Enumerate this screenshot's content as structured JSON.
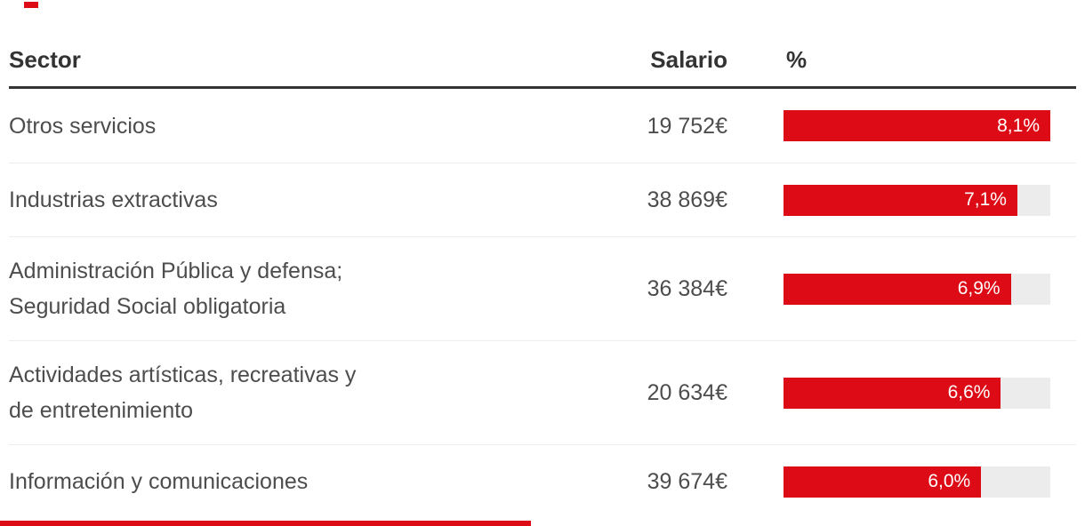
{
  "table": {
    "headers": {
      "sector": "Sector",
      "salario": "Salario",
      "percent": "%"
    },
    "rows": [
      {
        "sector": "Otros servicios",
        "salary": "19 752€",
        "percent": 8.1,
        "percent_label": "8,1%"
      },
      {
        "sector": "Industrias extractivas",
        "salary": "38 869€",
        "percent": 7.1,
        "percent_label": "7,1%"
      },
      {
        "sector": "Administración Pública y defensa;\nSeguridad Social obligatoria",
        "salary": "36 384€",
        "percent": 6.9,
        "percent_label": "6,9%"
      },
      {
        "sector": "Actividades artísticas, recreativas y\nde entretenimiento",
        "salary": "20 634€",
        "percent": 6.6,
        "percent_label": "6,6%"
      },
      {
        "sector": "Información y comunicaciones",
        "salary": "39 674€",
        "percent": 6.0,
        "percent_label": "6,0%"
      }
    ],
    "bar_max_percent": 8.1
  },
  "colors": {
    "bar_red": "#dc0b15",
    "bar_track": "#ececec",
    "header_text": "#333333",
    "row_text": "#4d4d4d",
    "divider": "#eeeeee",
    "rule": "#333333"
  },
  "chart_data": {
    "type": "table",
    "title": "",
    "columns": [
      "Sector",
      "Salario",
      "%"
    ],
    "rows": [
      {
        "sector": "Otros servicios",
        "salario": "19 752€",
        "percent": 8.1
      },
      {
        "sector": "Industrias extractivas",
        "salario": "38 869€",
        "percent": 7.1
      },
      {
        "sector": "Administración Pública y defensa; Seguridad Social obligatoria",
        "salario": "36 384€",
        "percent": 6.9
      },
      {
        "sector": "Actividades artísticas, recreativas y de entretenimiento",
        "salario": "20 634€",
        "percent": 6.6
      },
      {
        "sector": "Información y comunicaciones",
        "salario": "39 674€",
        "percent": 6.0
      }
    ],
    "bar_column": "%",
    "bar_axis_max": 8.1,
    "bar_color": "#dc0b15",
    "bar_label_format": "decimal-comma-percent",
    "legend_position": "none",
    "grid": false
  }
}
